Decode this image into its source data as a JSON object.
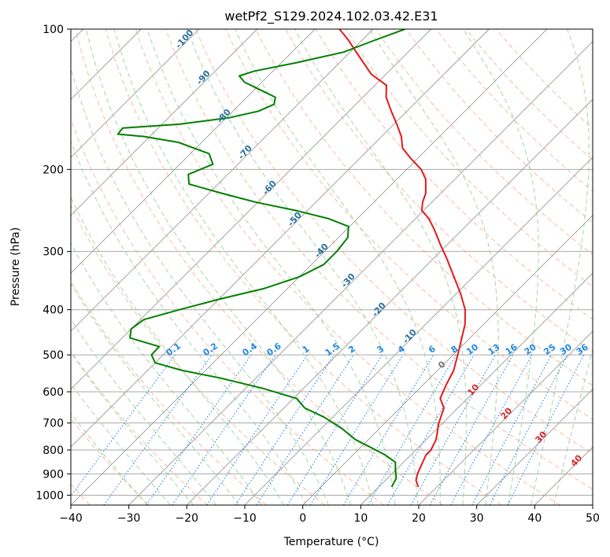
{
  "chart_data": {
    "type": "line",
    "chart_kind": "skew-T log-P diagram",
    "title": "wetPf2_S129.2024.102.03.42.E31",
    "xlabel": "Temperature (°C)",
    "ylabel": "Pressure (hPa)",
    "xlim": [
      -40,
      50
    ],
    "ylim": [
      1050,
      100
    ],
    "y_scale": "log",
    "grid": true,
    "x_ticks": [
      -40,
      -30,
      -20,
      -10,
      0,
      10,
      20,
      30,
      40,
      50
    ],
    "x_tick_labels": [
      "−40",
      "−30",
      "−20",
      "−10",
      "0",
      "10",
      "20",
      "30",
      "40",
      "50"
    ],
    "y_ticks": [
      100,
      200,
      300,
      400,
      500,
      600,
      700,
      800,
      900,
      1000
    ],
    "y_tick_labels": [
      "100",
      "200",
      "300",
      "400",
      "500",
      "600",
      "700",
      "800",
      "900",
      "1000"
    ],
    "series": [
      {
        "role": "temperature",
        "color": "#e41a1c",
        "points": [
          [
            960,
            16.8
          ],
          [
            930,
            15.3
          ],
          [
            900,
            14.4
          ],
          [
            850,
            13.3
          ],
          [
            820,
            12.6
          ],
          [
            800,
            12.6
          ],
          [
            760,
            11.7
          ],
          [
            700,
            9.3
          ],
          [
            650,
            7.6
          ],
          [
            620,
            5.3
          ],
          [
            580,
            4.0
          ],
          [
            540,
            2.8
          ],
          [
            500,
            0.8
          ],
          [
            460,
            -1.4
          ],
          [
            430,
            -3.2
          ],
          [
            400,
            -5.7
          ],
          [
            370,
            -9.2
          ],
          [
            340,
            -13.3
          ],
          [
            310,
            -17.8
          ],
          [
            290,
            -21.2
          ],
          [
            270,
            -24.7
          ],
          [
            255,
            -27.7
          ],
          [
            245,
            -30.3
          ],
          [
            235,
            -31.6
          ],
          [
            225,
            -32.6
          ],
          [
            210,
            -35.0
          ],
          [
            200,
            -37.5
          ],
          [
            190,
            -41.0
          ],
          [
            180,
            -44.4
          ],
          [
            170,
            -46.6
          ],
          [
            160,
            -49.5
          ],
          [
            150,
            -52.7
          ],
          [
            140,
            -56.0
          ],
          [
            132,
            -58.0
          ],
          [
            125,
            -62.5
          ],
          [
            115,
            -67.4
          ],
          [
            105,
            -72.7
          ],
          [
            100,
            -75.8
          ]
        ]
      },
      {
        "role": "dewpoint",
        "color": "#008000",
        "points": [
          [
            960,
            12.2
          ],
          [
            920,
            11.5
          ],
          [
            880,
            9.8
          ],
          [
            850,
            8.6
          ],
          [
            820,
            5.6
          ],
          [
            790,
            1.8
          ],
          [
            760,
            -2.2
          ],
          [
            720,
            -6.4
          ],
          [
            680,
            -11.5
          ],
          [
            650,
            -16.4
          ],
          [
            620,
            -19.5
          ],
          [
            590,
            -27.0
          ],
          [
            560,
            -36.3
          ],
          [
            540,
            -44.0
          ],
          [
            520,
            -50.0
          ],
          [
            500,
            -52.0
          ],
          [
            480,
            -52.1
          ],
          [
            460,
            -58.6
          ],
          [
            440,
            -60.0
          ],
          [
            420,
            -59.4
          ],
          [
            400,
            -55.0
          ],
          [
            380,
            -50.0
          ],
          [
            360,
            -44.0
          ],
          [
            340,
            -40.0
          ],
          [
            320,
            -37.9
          ],
          [
            300,
            -37.9
          ],
          [
            280,
            -38.4
          ],
          [
            265,
            -40.2
          ],
          [
            255,
            -45.0
          ],
          [
            245,
            -52.0
          ],
          [
            235,
            -60.5
          ],
          [
            225,
            -67.8
          ],
          [
            215,
            -75.0
          ],
          [
            205,
            -76.8
          ],
          [
            195,
            -74.3
          ],
          [
            185,
            -76.8
          ],
          [
            175,
            -84.0
          ],
          [
            170,
            -91.0
          ],
          [
            168,
            -95.9
          ],
          [
            163,
            -96.1
          ],
          [
            160,
            -87.0
          ],
          [
            155,
            -79.6
          ],
          [
            150,
            -75.6
          ],
          [
            145,
            -74.1
          ],
          [
            140,
            -75.1
          ],
          [
            135,
            -79.0
          ],
          [
            130,
            -83.0
          ],
          [
            126,
            -85.0
          ],
          [
            123,
            -83.2
          ],
          [
            118,
            -77.4
          ],
          [
            112,
            -71.1
          ],
          [
            106,
            -68.0
          ],
          [
            100,
            -64.5
          ]
        ]
      }
    ],
    "mixing_ratio_labels": [
      "0.1",
      "0.2",
      "0.4",
      "0.6",
      "1",
      "1.5",
      "2",
      "3",
      "4",
      "6",
      "8",
      "10",
      "13",
      "16",
      "20",
      "25",
      "30",
      "36"
    ],
    "mixing_ratio_values": [
      0.1,
      0.2,
      0.4,
      0.6,
      1,
      1.5,
      2,
      3,
      4,
      6,
      8,
      10,
      13,
      16,
      20,
      25,
      30,
      36
    ],
    "dry_adiabat_labels": [
      "-100",
      "-90",
      "-80",
      "-70",
      "-60",
      "-50",
      "-40",
      "-30",
      "-20",
      "-10"
    ],
    "moist_adiabat_labels": [
      "0",
      "10",
      "20",
      "30",
      "40"
    ],
    "colors": {
      "temperature": "#e41a1c",
      "dewpoint": "#008000",
      "isotherm": "#999999",
      "dry_adiabat": "#f4a582",
      "moist_adiabat": "#8fcc8f",
      "mixing_ratio": "#1e88e5",
      "grid": "#aaaaaa"
    }
  }
}
